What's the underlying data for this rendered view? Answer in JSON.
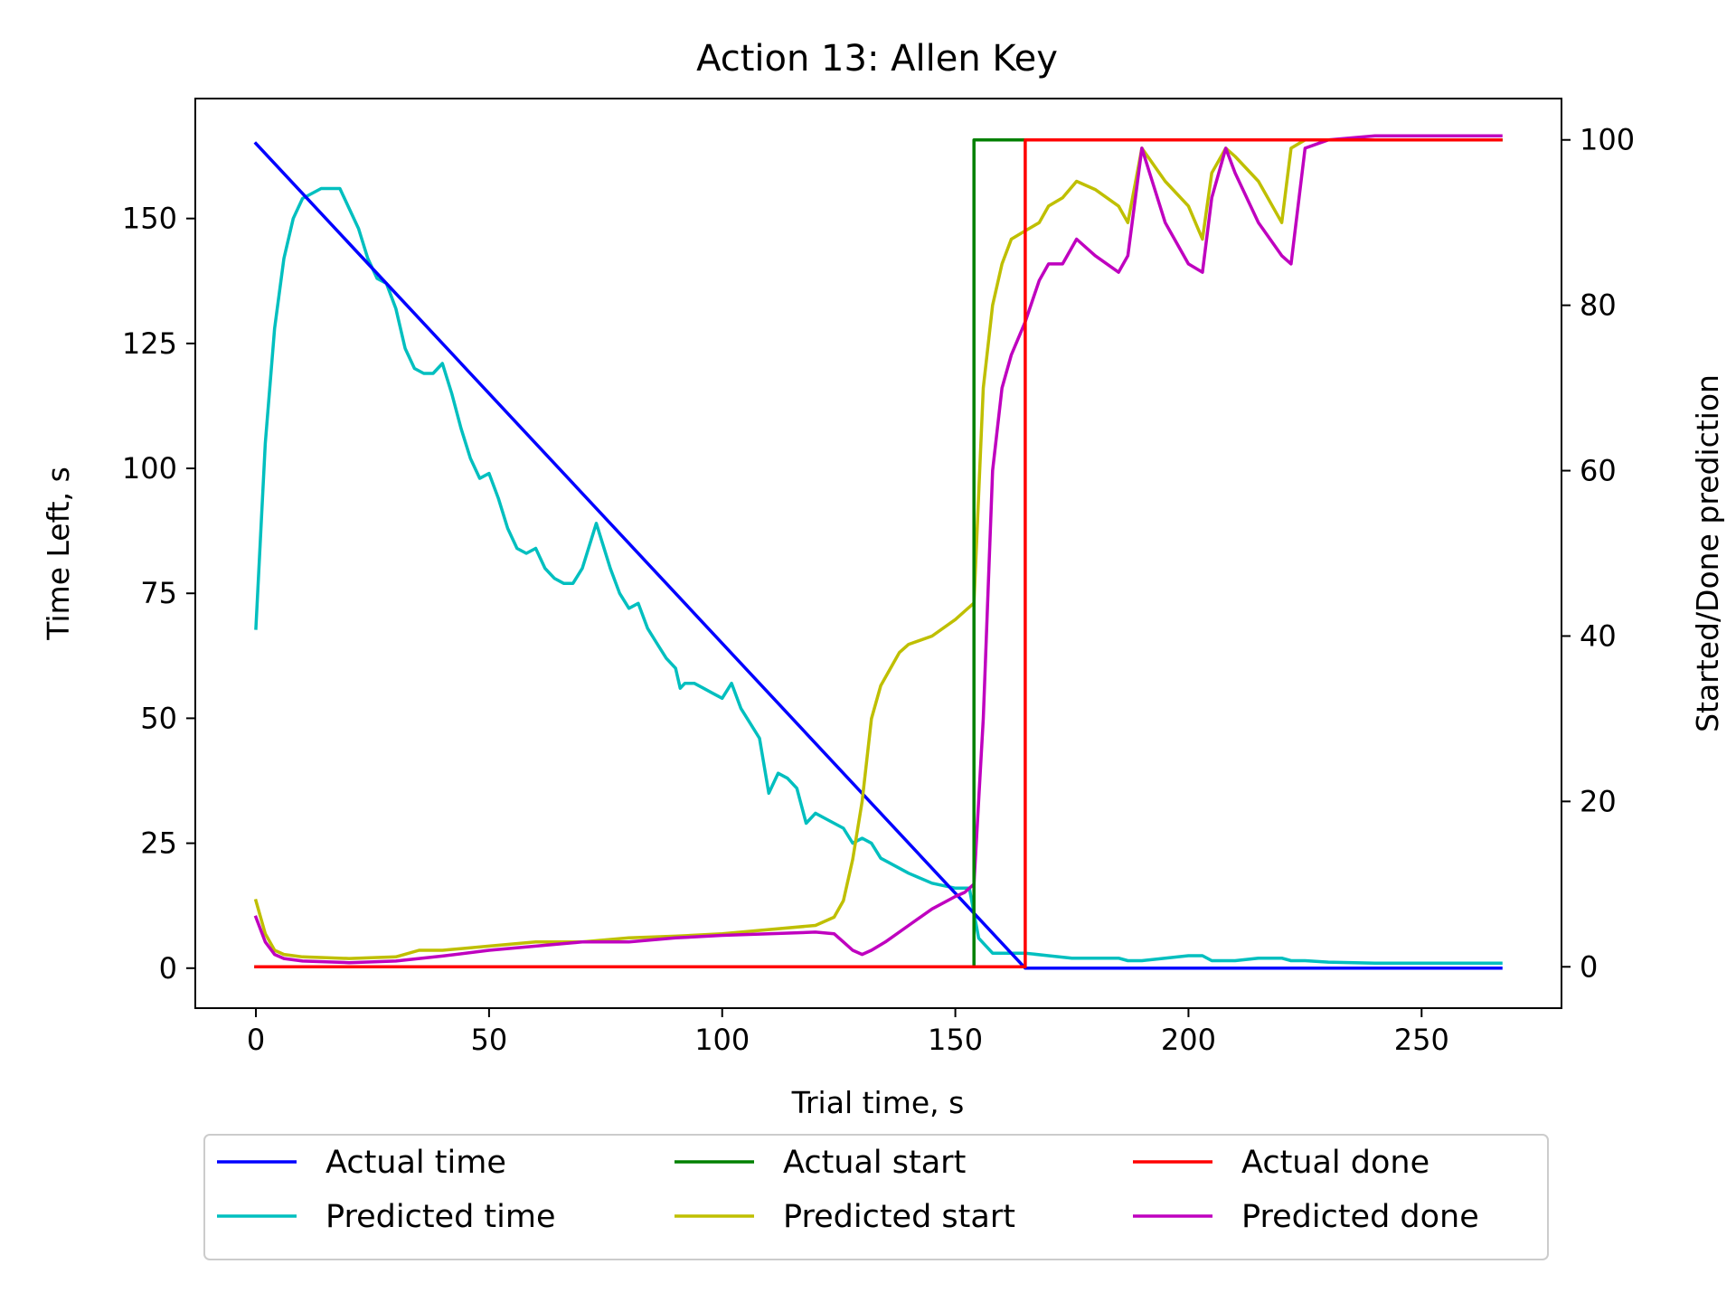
{
  "chart_data": {
    "type": "line",
    "title": "Action 13: Allen Key",
    "xlabel": "Trial time, s",
    "ylabel_left": "Time Left, s",
    "ylabel_right": "Started/Done prediction",
    "xlim": [
      -13,
      280
    ],
    "ylim_left": [
      -8,
      174
    ],
    "ylim_right": [
      -5,
      105
    ],
    "xticks": [
      0,
      50,
      100,
      150,
      200,
      250
    ],
    "yticks_left": [
      0,
      25,
      50,
      75,
      100,
      125,
      150
    ],
    "yticks_right": [
      0,
      20,
      40,
      60,
      80,
      100
    ],
    "grid": false,
    "legend": {
      "placement": "below-plot",
      "columns": 3
    },
    "series": [
      {
        "name": "Actual time",
        "axis": "left",
        "color": "#0000ff",
        "x": [
          0,
          165,
          267
        ],
        "y": [
          165,
          0,
          0
        ]
      },
      {
        "name": "Predicted time",
        "axis": "left",
        "color": "#00bfbf",
        "x": [
          0,
          2,
          4,
          6,
          8,
          10,
          12,
          14,
          16,
          18,
          20,
          22,
          24,
          26,
          28,
          30,
          32,
          34,
          36,
          38,
          40,
          42,
          44,
          46,
          48,
          50,
          52,
          54,
          56,
          58,
          60,
          62,
          64,
          66,
          68,
          70,
          73,
          76,
          78,
          80,
          82,
          84,
          86,
          88,
          90,
          91,
          92,
          94,
          96,
          98,
          100,
          102,
          104,
          106,
          108,
          110,
          112,
          114,
          116,
          118,
          120,
          122,
          124,
          126,
          128,
          130,
          132,
          134,
          136,
          140,
          145,
          150,
          153,
          155,
          158,
          160,
          165,
          170,
          175,
          180,
          185,
          187,
          190,
          195,
          200,
          203,
          205,
          210,
          215,
          220,
          222,
          225,
          230,
          240,
          250,
          267
        ],
        "y": [
          68,
          105,
          128,
          142,
          150,
          154,
          155,
          156,
          156,
          156,
          152,
          148,
          142,
          138,
          137,
          132,
          124,
          120,
          119,
          119,
          121,
          115,
          108,
          102,
          98,
          99,
          94,
          88,
          84,
          83,
          84,
          80,
          78,
          77,
          77,
          80,
          89,
          80,
          75,
          72,
          73,
          68,
          65,
          62,
          60,
          56,
          57,
          57,
          56,
          55,
          54,
          57,
          52,
          49,
          46,
          35,
          39,
          38,
          36,
          29,
          31,
          30,
          29,
          28,
          25,
          26,
          25,
          22,
          21,
          19,
          17,
          16,
          16,
          6,
          3,
          3,
          3,
          2.5,
          2,
          2,
          2,
          1.5,
          1.5,
          2,
          2.5,
          2.5,
          1.5,
          1.5,
          2,
          2,
          1.5,
          1.5,
          1.2,
          1,
          1,
          1
        ]
      },
      {
        "name": "Actual start",
        "axis": "right",
        "color": "#008000",
        "x": [
          0,
          154,
          154,
          267
        ],
        "y": [
          0,
          0,
          100,
          100
        ]
      },
      {
        "name": "Predicted start",
        "axis": "right",
        "color": "#bfbf00",
        "x": [
          0,
          2,
          4,
          6,
          10,
          20,
          30,
          35,
          40,
          50,
          60,
          70,
          80,
          90,
          100,
          110,
          120,
          124,
          126,
          128,
          130,
          132,
          134,
          136,
          138,
          140,
          145,
          150,
          152,
          154,
          156,
          158,
          160,
          162,
          165,
          168,
          170,
          173,
          176,
          180,
          185,
          187,
          190,
          195,
          200,
          203,
          205,
          208,
          210,
          215,
          220,
          222,
          225,
          230,
          240,
          250,
          267
        ],
        "y": [
          8,
          4,
          2,
          1.5,
          1.2,
          1,
          1.2,
          2,
          2,
          2.5,
          3,
          3,
          3.5,
          3.7,
          4,
          4.5,
          5,
          6,
          8,
          13,
          20,
          30,
          34,
          36,
          38,
          39,
          40,
          42,
          43,
          44,
          70,
          80,
          85,
          88,
          89,
          90,
          92,
          93,
          95,
          94,
          92,
          90,
          99,
          95,
          92,
          88,
          96,
          99,
          98,
          95,
          90,
          99,
          100,
          100,
          100,
          100,
          100
        ]
      },
      {
        "name": "Actual done",
        "axis": "right",
        "color": "#ff0000",
        "x": [
          0,
          165,
          165,
          267
        ],
        "y": [
          0,
          0,
          100,
          100
        ]
      },
      {
        "name": "Predicted done",
        "axis": "right",
        "color": "#bf00bf",
        "x": [
          0,
          2,
          4,
          6,
          10,
          20,
          30,
          40,
          50,
          60,
          70,
          80,
          90,
          100,
          110,
          120,
          124,
          126,
          128,
          130,
          132,
          135,
          140,
          145,
          150,
          152,
          154,
          156,
          158,
          160,
          162,
          165,
          168,
          170,
          173,
          176,
          180,
          185,
          187,
          190,
          195,
          200,
          203,
          205,
          208,
          210,
          215,
          220,
          222,
          225,
          230,
          240,
          250,
          267
        ],
        "y": [
          6,
          3,
          1.5,
          1,
          0.7,
          0.5,
          0.7,
          1.3,
          2,
          2.5,
          3,
          3,
          3.5,
          3.8,
          4,
          4.2,
          4,
          3,
          2,
          1.5,
          2,
          3,
          5,
          7,
          8.5,
          9,
          10,
          30,
          60,
          70,
          74,
          78,
          83,
          85,
          85,
          88,
          86,
          84,
          86,
          99,
          90,
          85,
          84,
          93,
          99,
          96,
          90,
          86,
          85,
          99,
          100,
          100.5,
          100.5,
          100.5
        ]
      }
    ]
  }
}
